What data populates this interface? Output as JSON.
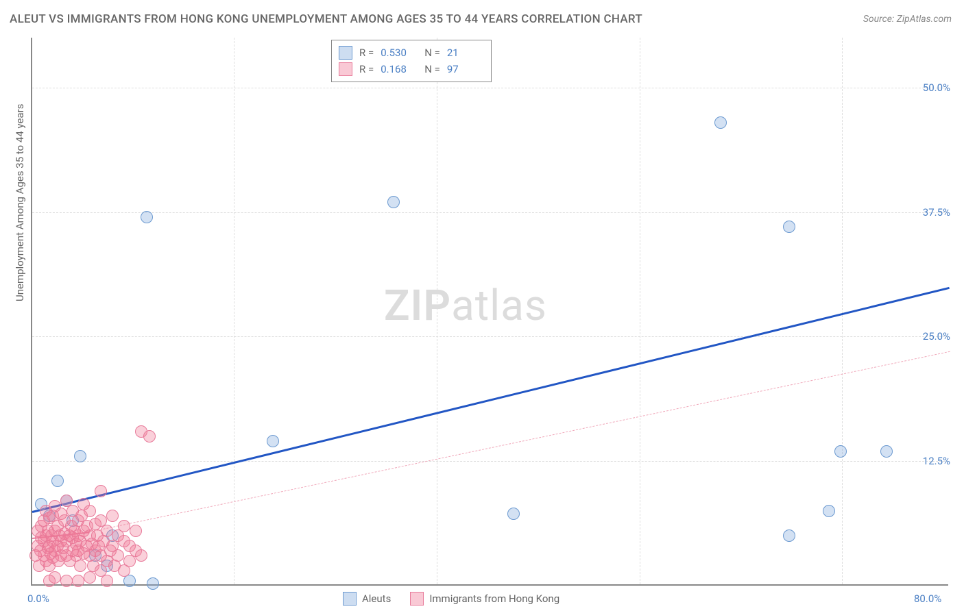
{
  "title": "ALEUT VS IMMIGRANTS FROM HONG KONG UNEMPLOYMENT AMONG AGES 35 TO 44 YEARS CORRELATION CHART",
  "source": "Source: ZipAtlas.com",
  "watermark_a": "ZIP",
  "watermark_b": "atlas",
  "chart": {
    "type": "scatter",
    "ylabel": "Unemployment Among Ages 35 to 44 years",
    "xlim": [
      0,
      80
    ],
    "ylim": [
      0,
      55
    ],
    "x_ticks": [
      {
        "v": 0,
        "l": "0.0%"
      },
      {
        "v": 80,
        "l": "80.0%"
      }
    ],
    "y_ticks": [
      {
        "v": 12.5,
        "l": "12.5%"
      },
      {
        "v": 25,
        "l": "25.0%"
      },
      {
        "v": 37.5,
        "l": "37.5%"
      },
      {
        "v": 50,
        "l": "50.0%"
      }
    ],
    "grid_h": [
      12.5,
      25,
      37.5,
      50
    ],
    "grid_v": [
      17.6,
      35.3,
      53,
      70.6
    ],
    "background_color": "#ffffff",
    "grid_color": "#dddddd",
    "axis_color": "#888888",
    "label_color": "#4a7fc4",
    "marker_radius": 9,
    "series": [
      {
        "name": "Aleuts",
        "color_fill": "rgba(130,170,220,0.35)",
        "color_stroke": "#6b99d0",
        "R": "0.530",
        "N": "21",
        "trend": {
          "x1": 0,
          "y1": 7.5,
          "x2": 80,
          "y2": 30,
          "color": "#2256c4",
          "width": 3,
          "dash": false
        },
        "points": [
          [
            0.8,
            8.2
          ],
          [
            1.5,
            7.0
          ],
          [
            2.2,
            10.5
          ],
          [
            3.0,
            8.5
          ],
          [
            3.5,
            6.5
          ],
          [
            4.2,
            13.0
          ],
          [
            5.5,
            3.0
          ],
          [
            6.5,
            2.0
          ],
          [
            7.0,
            5.0
          ],
          [
            8.5,
            0.5
          ],
          [
            10.5,
            0.2
          ],
          [
            10.0,
            37.0
          ],
          [
            21.0,
            14.5
          ],
          [
            31.5,
            38.5
          ],
          [
            42.0,
            7.2
          ],
          [
            60.0,
            46.5
          ],
          [
            66.0,
            36.0
          ],
          [
            69.5,
            7.5
          ],
          [
            70.5,
            13.5
          ],
          [
            74.5,
            13.5
          ],
          [
            66.0,
            5.0
          ]
        ]
      },
      {
        "name": "Immigrants from Hong Kong",
        "color_fill": "rgba(240,120,150,0.35)",
        "color_stroke": "#e87a9a",
        "R": "0.168",
        "N": "97",
        "trend_solid": {
          "x1": 0,
          "y1": 4.8,
          "x2": 5,
          "y2": 5.4,
          "color": "#e87a9a",
          "width": 2
        },
        "trend_dash": {
          "x1": 5,
          "y1": 5.4,
          "x2": 80,
          "y2": 23.5,
          "color": "#f0a8ba",
          "width": 1.5
        },
        "points": [
          [
            0.3,
            3.0
          ],
          [
            0.5,
            4.0
          ],
          [
            0.5,
            5.5
          ],
          [
            0.6,
            2.0
          ],
          [
            0.7,
            3.5
          ],
          [
            0.8,
            4.8
          ],
          [
            0.8,
            6.0
          ],
          [
            1.0,
            3.0
          ],
          [
            1.0,
            4.5
          ],
          [
            1.0,
            6.5
          ],
          [
            1.2,
            2.5
          ],
          [
            1.2,
            5.0
          ],
          [
            1.2,
            7.5
          ],
          [
            1.4,
            3.8
          ],
          [
            1.4,
            5.5
          ],
          [
            1.5,
            2.0
          ],
          [
            1.5,
            4.0
          ],
          [
            1.5,
            6.8
          ],
          [
            1.6,
            3.2
          ],
          [
            1.7,
            5.0
          ],
          [
            1.8,
            2.8
          ],
          [
            1.8,
            4.5
          ],
          [
            1.8,
            7.0
          ],
          [
            2.0,
            3.5
          ],
          [
            2.0,
            5.5
          ],
          [
            2.0,
            8.0
          ],
          [
            2.2,
            4.0
          ],
          [
            2.2,
            6.0
          ],
          [
            2.3,
            2.5
          ],
          [
            2.4,
            5.0
          ],
          [
            2.5,
            3.0
          ],
          [
            2.5,
            4.5
          ],
          [
            2.5,
            7.2
          ],
          [
            2.7,
            3.8
          ],
          [
            2.8,
            5.2
          ],
          [
            2.8,
            6.5
          ],
          [
            3.0,
            3.0
          ],
          [
            3.0,
            4.5
          ],
          [
            3.0,
            8.5
          ],
          [
            3.2,
            5.0
          ],
          [
            3.3,
            2.5
          ],
          [
            3.4,
            6.0
          ],
          [
            3.5,
            3.5
          ],
          [
            3.5,
            4.8
          ],
          [
            3.5,
            7.5
          ],
          [
            3.7,
            5.5
          ],
          [
            3.8,
            3.0
          ],
          [
            3.8,
            4.2
          ],
          [
            4.0,
            6.5
          ],
          [
            4.0,
            3.5
          ],
          [
            4.0,
            5.0
          ],
          [
            4.2,
            2.0
          ],
          [
            4.2,
            4.5
          ],
          [
            4.3,
            7.0
          ],
          [
            4.5,
            3.2
          ],
          [
            4.5,
            5.5
          ],
          [
            4.5,
            8.2
          ],
          [
            4.7,
            4.0
          ],
          [
            4.8,
            6.0
          ],
          [
            5.0,
            3.0
          ],
          [
            5.0,
            5.0
          ],
          [
            5.0,
            7.5
          ],
          [
            5.2,
            4.2
          ],
          [
            5.3,
            2.0
          ],
          [
            5.5,
            6.2
          ],
          [
            5.5,
            3.5
          ],
          [
            5.7,
            5.0
          ],
          [
            5.8,
            4.0
          ],
          [
            6.0,
            1.5
          ],
          [
            6.0,
            3.0
          ],
          [
            6.0,
            6.5
          ],
          [
            6.0,
            9.5
          ],
          [
            6.2,
            4.5
          ],
          [
            6.5,
            2.5
          ],
          [
            6.5,
            5.5
          ],
          [
            6.8,
            3.5
          ],
          [
            7.0,
            4.0
          ],
          [
            7.0,
            7.0
          ],
          [
            7.2,
            2.0
          ],
          [
            7.5,
            5.0
          ],
          [
            7.5,
            3.0
          ],
          [
            8.0,
            4.5
          ],
          [
            8.0,
            1.5
          ],
          [
            8.0,
            6.0
          ],
          [
            8.5,
            4.0
          ],
          [
            8.5,
            2.5
          ],
          [
            9.0,
            3.5
          ],
          [
            9.0,
            5.5
          ],
          [
            9.5,
            3.0
          ],
          [
            9.5,
            15.5
          ],
          [
            10.2,
            15.0
          ],
          [
            4.0,
            0.5
          ],
          [
            5.0,
            0.8
          ],
          [
            3.0,
            0.5
          ],
          [
            2.0,
            0.8
          ],
          [
            1.5,
            0.5
          ],
          [
            6.5,
            0.5
          ]
        ]
      }
    ],
    "legend_bottom": [
      {
        "swatch": "blue",
        "label": "Aleuts"
      },
      {
        "swatch": "pink",
        "label": "Immigrants from Hong Kong"
      }
    ]
  }
}
